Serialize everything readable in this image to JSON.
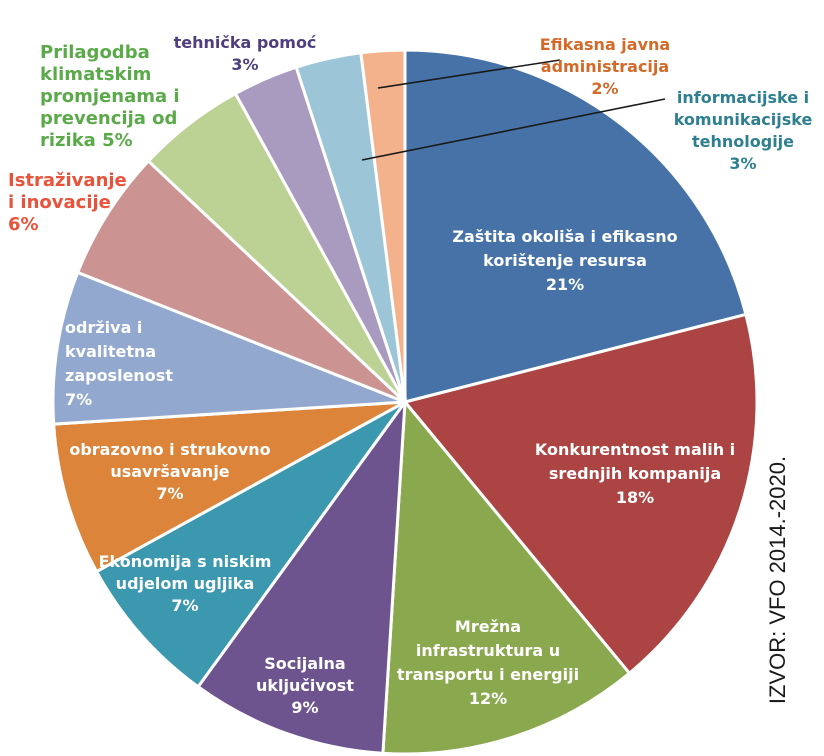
{
  "chart_data": {
    "type": "pie",
    "slices": [
      {
        "lines": [
          "Zaštita okoliša i efikasno",
          "korištenje resursa",
          "21%"
        ],
        "value": 21,
        "color": "#4672A8",
        "label_color": "#ffffff"
      },
      {
        "lines": [
          "Konkurentnost malih i",
          "srednjih kompanija",
          "18%"
        ],
        "value": 18,
        "color": "#AB4442",
        "label_color": "#ffffff"
      },
      {
        "lines": [
          "Mrežna",
          "infrastruktura u",
          "transportu i energiji",
          "12%"
        ],
        "value": 12,
        "color": "#8AA84E",
        "label_color": "#ffffff"
      },
      {
        "lines": [
          "Socijalna",
          "uključivost",
          "9%"
        ],
        "value": 9,
        "color": "#6E548F",
        "label_color": "#ffffff"
      },
      {
        "lines": [
          "Ekonomija s niskim",
          "udjelom ugljika",
          "7%"
        ],
        "value": 7,
        "color": "#3B98AE",
        "label_color": "#ffffff"
      },
      {
        "lines": [
          "obrazovno i strukovno",
          "usavršavanje",
          "7%"
        ],
        "value": 7,
        "color": "#DB843A",
        "label_color": "#ffffff"
      },
      {
        "lines": [
          "održiva i",
          "kvalitetna",
          "zaposlenost",
          "7%"
        ],
        "value": 7,
        "color": "#93A8CF",
        "label_color": "#ffffff"
      },
      {
        "lines": [
          "Istraživanje",
          "i inovacije",
          "6%"
        ],
        "value": 6,
        "color": "#CC9393",
        "label_color": "#E8533B"
      },
      {
        "lines": [
          "Prilagodba",
          "klimatskim",
          "promjenama i",
          "prevencija od",
          "rizika 5%"
        ],
        "value": 5,
        "color": "#BCD194",
        "label_color": "#5BAA4A"
      },
      {
        "lines": [
          "tehnička pomoć",
          "3%"
        ],
        "value": 3,
        "color": "#A99BC0",
        "label_color": "#4E3F7F"
      },
      {
        "lines": [
          "informacijske i",
          "komunikacijske",
          "tehnologije",
          "3%"
        ],
        "value": 3,
        "color": "#9CC6D8",
        "label_color": "#2E7F90"
      },
      {
        "lines": [
          "Efikasna javna",
          "administracija",
          "2%"
        ],
        "value": 2,
        "color": "#F3B28B",
        "label_color": "#D36A2A"
      }
    ],
    "source": "IZVOR: VFO 2014.-2020."
  }
}
